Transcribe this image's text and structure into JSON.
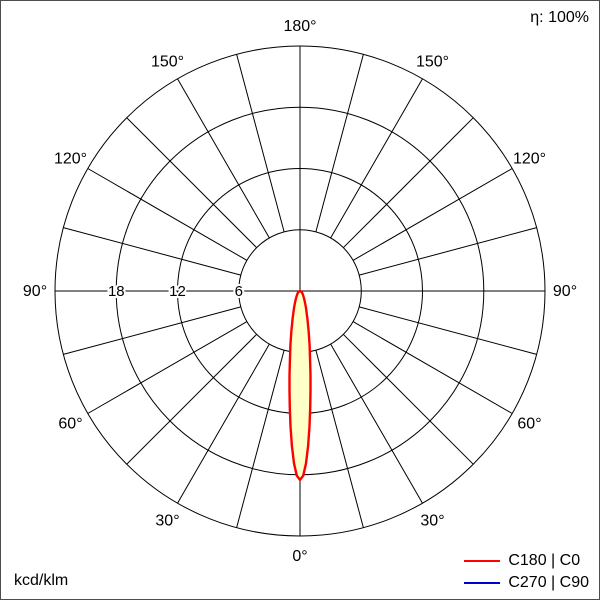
{
  "header": {
    "efficiency": "η: 100%"
  },
  "footer": {
    "unit": "kcd/klm"
  },
  "legend": {
    "items": [
      {
        "label": "C180 | C0",
        "color": "#ff0000"
      },
      {
        "label": "C270 | C90",
        "color": "#0000cc"
      }
    ]
  },
  "chart_data": {
    "type": "polar",
    "subtype": "photometric-intensity-distribution",
    "unit": "kcd/klm",
    "efficiency_percent": 100,
    "angle_labels_deg": [
      0,
      30,
      60,
      90,
      120,
      150,
      180
    ],
    "grid_angle_step_deg": 15,
    "grid_circles": [
      6,
      12,
      18,
      24
    ],
    "radial_ticks": [
      6,
      12,
      18
    ],
    "radial_max": 24,
    "colors": {
      "grid": "#000000",
      "beam_fill": "#ffffc8",
      "c0": "#ff0000",
      "c90": "#0000cc"
    },
    "series": [
      {
        "name": "C180 | C0",
        "color": "#ff0000",
        "fill": "#ffffc8",
        "visible": true,
        "peak_value_kcd_per_klm": 18.5,
        "peak_direction_deg": 0,
        "curve": {
          "gamma_deg": [
            0,
            1,
            2,
            3,
            4,
            5,
            6,
            7,
            8,
            10,
            12,
            15,
            20,
            25,
            30,
            40,
            50,
            60,
            75,
            90
          ],
          "values": [
            18.5,
            18.1,
            16.9,
            15.2,
            13.3,
            11.5,
            9.8,
            8.4,
            7.2,
            5.4,
            4.1,
            2.8,
            1.7,
            1.1,
            0.77,
            0.42,
            0.25,
            0.15,
            0.06,
            0
          ]
        }
      },
      {
        "name": "C270 | C90",
        "color": "#0000cc",
        "visible": false
      }
    ]
  }
}
